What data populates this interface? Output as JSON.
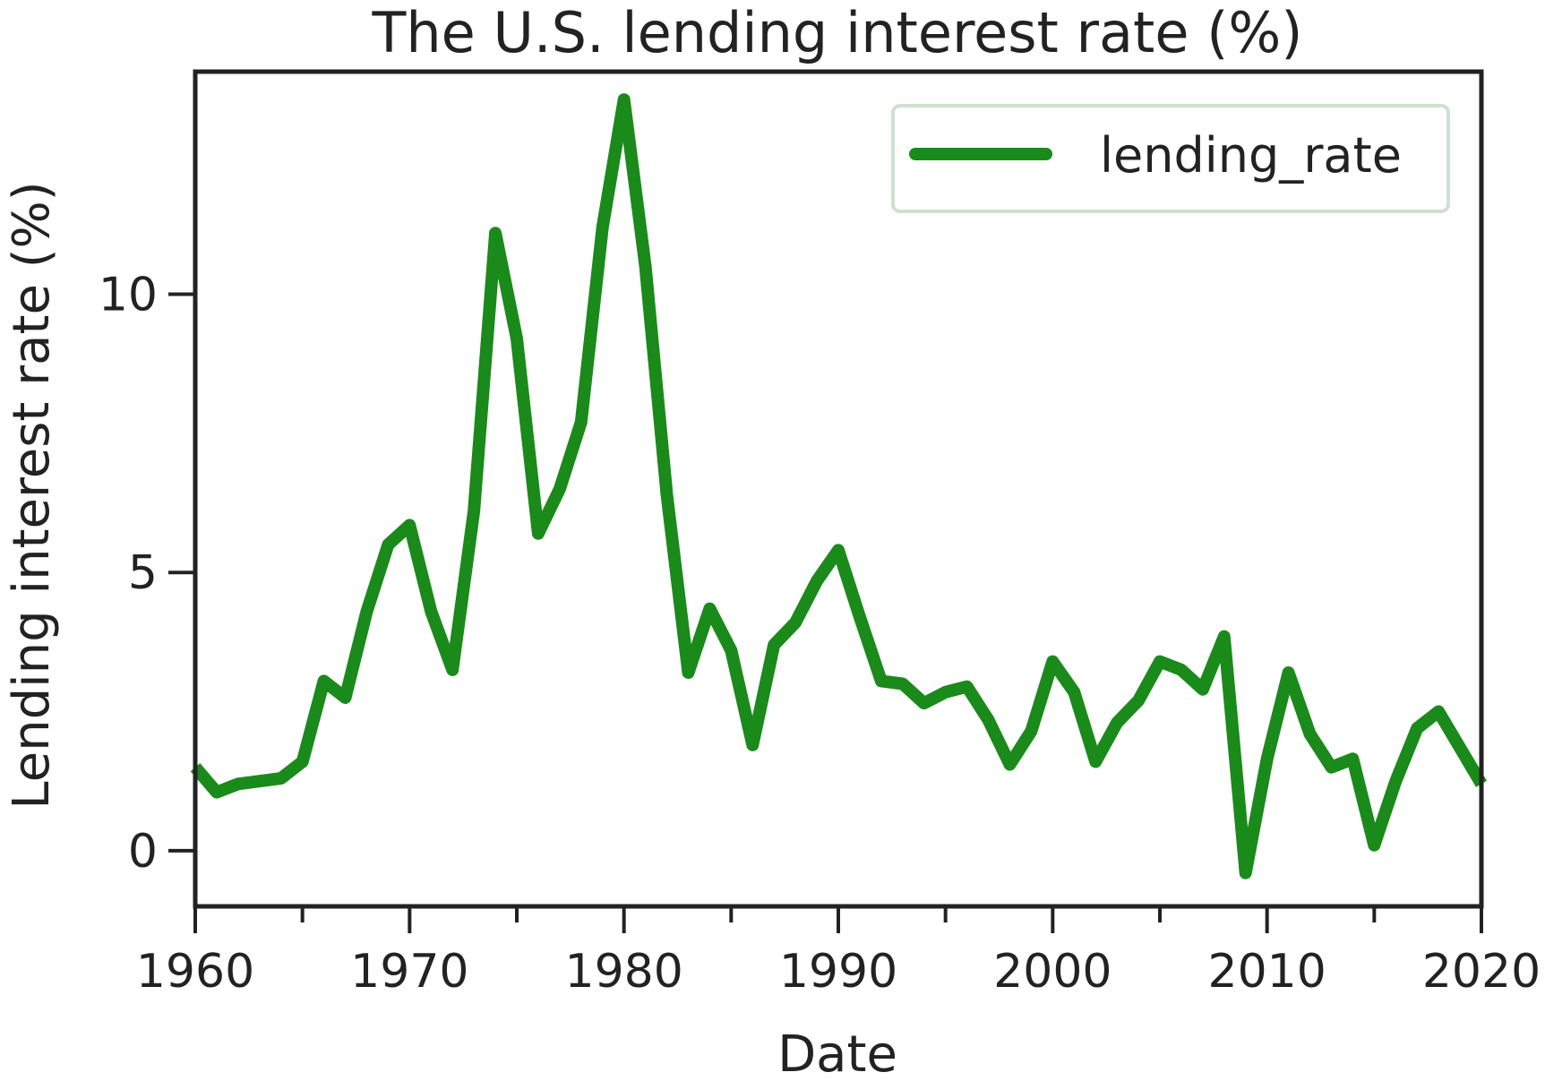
{
  "chart_data": {
    "type": "line",
    "title": "The U.S. lending interest rate (%)",
    "xlabel": "Date",
    "ylabel": "Lending interest rate (%)",
    "xlim": [
      1960,
      2020
    ],
    "ylim": [
      -1,
      14
    ],
    "x_ticks": [
      "1960",
      "1970",
      "1980",
      "1990",
      "2000",
      "2010",
      "2020"
    ],
    "x_tick_values": [
      1960,
      1970,
      1980,
      1990,
      2000,
      2010,
      2020
    ],
    "x_minor_ticks": [
      1965,
      1975,
      1985,
      1995,
      2005,
      2015
    ],
    "y_ticks": [
      "0",
      "5",
      "10"
    ],
    "y_tick_values": [
      0,
      5,
      10
    ],
    "grid": false,
    "legend_position": "top-right",
    "colors": {
      "line": "#1a8a1a",
      "axis": "#222222",
      "legend_border": "#cfe0cf"
    },
    "series": [
      {
        "name": "lending_rate",
        "x": [
          1960,
          1961,
          1962,
          1963,
          1964,
          1965,
          1966,
          1967,
          1968,
          1969,
          1970,
          1971,
          1972,
          1973,
          1974,
          1975,
          1976,
          1977,
          1978,
          1979,
          1980,
          1981,
          1982,
          1983,
          1984,
          1985,
          1986,
          1987,
          1988,
          1989,
          1990,
          1991,
          1992,
          1993,
          1994,
          1995,
          1996,
          1997,
          1998,
          1999,
          2000,
          2001,
          2002,
          2003,
          2004,
          2005,
          2006,
          2007,
          2008,
          2009,
          2010,
          2011,
          2012,
          2013,
          2014,
          2015,
          2016,
          2017,
          2018,
          2019,
          2020
        ],
        "values": [
          1.5,
          1.05,
          1.2,
          1.25,
          1.3,
          1.6,
          3.05,
          2.75,
          4.3,
          5.5,
          5.85,
          4.3,
          3.25,
          6.1,
          11.1,
          9.2,
          5.7,
          6.5,
          7.7,
          11.2,
          13.5,
          10.5,
          6.4,
          3.2,
          4.35,
          3.6,
          1.9,
          3.7,
          4.1,
          4.85,
          5.4,
          4.2,
          3.05,
          3.0,
          2.65,
          2.85,
          2.95,
          2.35,
          1.55,
          2.15,
          3.4,
          2.85,
          1.6,
          2.3,
          2.7,
          3.4,
          3.25,
          2.9,
          3.85,
          -0.4,
          1.65,
          3.2,
          2.1,
          1.5,
          1.65,
          0.1,
          1.25,
          2.2,
          2.5,
          1.85,
          1.2
        ]
      }
    ]
  }
}
